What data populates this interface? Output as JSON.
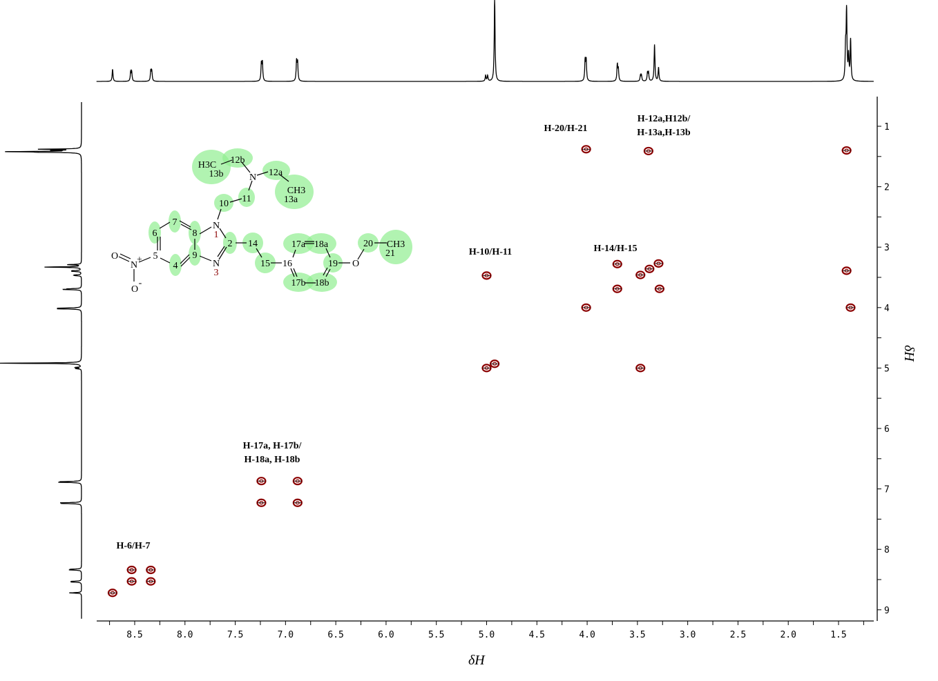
{
  "chart_data": {
    "type": "scatter",
    "subtype": "2D NMR correlation contour plot with projected 1D spectra",
    "xlabel": "δH",
    "ylabel": "δH",
    "xlim": [
      8.88,
      1.15
    ],
    "ylim": [
      0.51,
      9.18
    ],
    "x_reversed": true,
    "y_reversed": true,
    "x_ticks": [
      "8.5",
      "8.0",
      "7.5",
      "7.0",
      "6.5",
      "6.0",
      "5.5",
      "5.0",
      "4.5",
      "4.0",
      "3.5",
      "3.0",
      "2.5",
      "2.0",
      "1.5"
    ],
    "y_ticks": [
      "1",
      "2",
      "3",
      "4",
      "5",
      "6",
      "7",
      "8",
      "9"
    ],
    "grid": false,
    "peak_color": "#8b0000",
    "cross_peaks": [
      {
        "x": 8.72,
        "y": 8.72
      },
      {
        "x": 8.53,
        "y": 8.34
      },
      {
        "x": 8.53,
        "y": 8.53
      },
      {
        "x": 8.34,
        "y": 8.34
      },
      {
        "x": 8.34,
        "y": 8.53
      },
      {
        "x": 7.24,
        "y": 6.87
      },
      {
        "x": 7.24,
        "y": 7.23
      },
      {
        "x": 6.88,
        "y": 6.87
      },
      {
        "x": 6.88,
        "y": 7.23
      },
      {
        "x": 5.0,
        "y": 3.47
      },
      {
        "x": 5.0,
        "y": 5.0
      },
      {
        "x": 4.92,
        "y": 4.93
      },
      {
        "x": 4.01,
        "y": 1.38
      },
      {
        "x": 4.01,
        "y": 4.0
      },
      {
        "x": 3.39,
        "y": 1.41
      },
      {
        "x": 3.7,
        "y": 3.28
      },
      {
        "x": 3.7,
        "y": 3.69
      },
      {
        "x": 3.47,
        "y": 3.46
      },
      {
        "x": 3.38,
        "y": 3.36
      },
      {
        "x": 3.29,
        "y": 3.27
      },
      {
        "x": 3.28,
        "y": 3.69
      },
      {
        "x": 3.47,
        "y": 5.0
      },
      {
        "x": 1.42,
        "y": 1.4
      },
      {
        "x": 1.42,
        "y": 3.39
      },
      {
        "x": 1.38,
        "y": 4.0
      }
    ],
    "projection_peaks": [
      {
        "ppm": 8.72,
        "intensity": 0.15
      },
      {
        "ppm": 8.54,
        "intensity": 0.11
      },
      {
        "ppm": 8.53,
        "intensity": 0.11
      },
      {
        "ppm": 8.34,
        "intensity": 0.13
      },
      {
        "ppm": 8.33,
        "intensity": 0.12
      },
      {
        "ppm": 7.24,
        "intensity": 0.21
      },
      {
        "ppm": 7.23,
        "intensity": 0.22
      },
      {
        "ppm": 6.89,
        "intensity": 0.24
      },
      {
        "ppm": 6.88,
        "intensity": 0.22
      },
      {
        "ppm": 5.01,
        "intensity": 0.07
      },
      {
        "ppm": 4.99,
        "intensity": 0.07
      },
      {
        "ppm": 4.92,
        "intensity": 1.0
      },
      {
        "ppm": 4.02,
        "intensity": 0.25
      },
      {
        "ppm": 4.01,
        "intensity": 0.25
      },
      {
        "ppm": 3.7,
        "intensity": 0.2
      },
      {
        "ppm": 3.69,
        "intensity": 0.14
      },
      {
        "ppm": 3.47,
        "intensity": 0.07
      },
      {
        "ppm": 3.46,
        "intensity": 0.07
      },
      {
        "ppm": 3.4,
        "intensity": 0.1
      },
      {
        "ppm": 3.39,
        "intensity": 0.1
      },
      {
        "ppm": 3.33,
        "intensity": 0.45
      },
      {
        "ppm": 3.29,
        "intensity": 0.17
      },
      {
        "ppm": 1.43,
        "intensity": 0.38
      },
      {
        "ppm": 1.42,
        "intensity": 0.84
      },
      {
        "ppm": 1.4,
        "intensity": 0.3
      },
      {
        "ppm": 1.38,
        "intensity": 0.5
      }
    ],
    "annotations": [
      {
        "lines": [
          "H-6/H-7"
        ]
      },
      {
        "lines": [
          "H-17a, H-17b/",
          "H-18a, H-18b"
        ]
      },
      {
        "lines": [
          "H-10/H-11"
        ]
      },
      {
        "lines": [
          "H-20/H-21"
        ]
      },
      {
        "lines": [
          "H-12a,H12b/",
          "H-13a,H-13b"
        ]
      },
      {
        "lines": [
          "H-14/H-15"
        ]
      }
    ]
  },
  "molecule": {
    "highlight_color": "#90ee90",
    "atoms": [
      "H3C",
      "13b",
      "12b",
      "N",
      "12a",
      "CH3",
      "13a",
      "11",
      "10",
      "N",
      "1",
      "7",
      "8",
      "6",
      "5",
      "9",
      "4",
      "N",
      "3",
      "2",
      "14",
      "15",
      "16",
      "17a",
      "18a",
      "19",
      "O",
      "20",
      "CH3",
      "21",
      "17b",
      "18b",
      "N",
      "+",
      "O",
      "O",
      "-"
    ]
  }
}
